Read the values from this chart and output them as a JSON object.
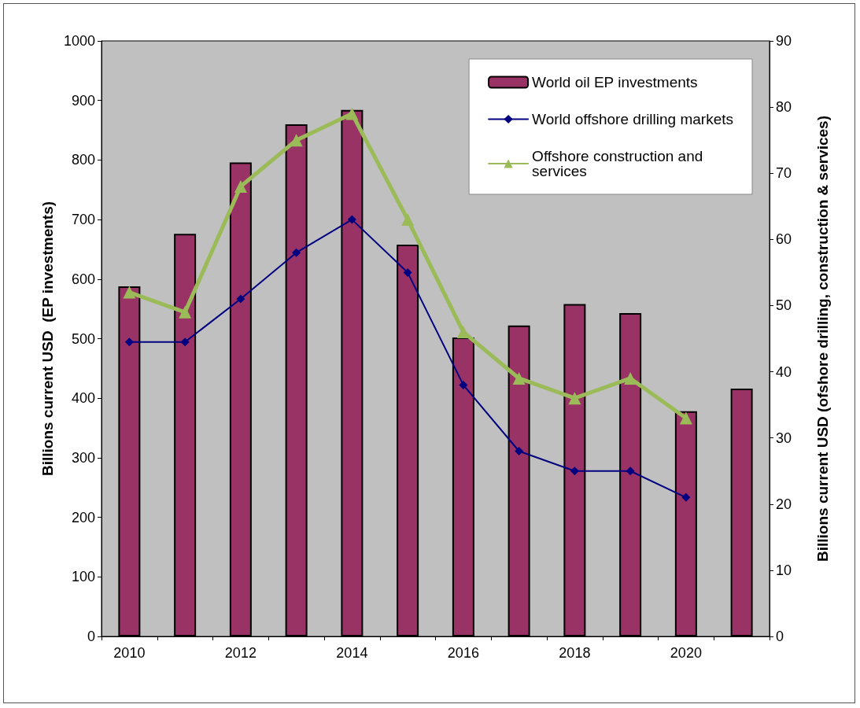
{
  "chart_data": {
    "type": "bar",
    "ylabel": "Billions current USD  (EP investments)",
    "y2label": "Billions current USD (ofshore drilling, construction & services)",
    "categories": [
      "2010",
      null,
      "2012",
      null,
      "2014",
      null,
      "2016",
      null,
      "2018",
      null,
      "2020",
      null
    ],
    "series": [
      {
        "name": "World oil EP investments",
        "color": "#993366",
        "values": [
          588,
          676,
          796,
          860,
          884,
          658,
          502,
          522,
          558,
          543,
          378,
          416
        ]
      },
      {
        "name": "World offshore drilling markets",
        "type": "line",
        "axis": "y2",
        "color": "#000080",
        "marker": "diamond",
        "values": [
          44.5,
          44.5,
          51,
          58,
          63,
          55,
          38,
          28,
          25,
          25,
          21,
          null
        ]
      },
      {
        "name": "Offshore construction and services",
        "type": "line",
        "axis": "y2",
        "color": "#9bbb59",
        "marker": "triangle",
        "values": [
          52,
          49,
          68,
          75,
          79,
          63,
          46,
          39,
          36,
          39,
          33,
          null
        ]
      }
    ],
    "ylim": [
      0,
      1000
    ],
    "yticks": [
      0,
      100,
      200,
      300,
      400,
      500,
      600,
      700,
      800,
      900,
      1000
    ],
    "y2lim": [
      0,
      90
    ],
    "y2ticks": [
      0,
      10,
      20,
      30,
      40,
      50,
      60,
      70,
      80,
      90
    ],
    "grid": false,
    "legend": "top right"
  }
}
